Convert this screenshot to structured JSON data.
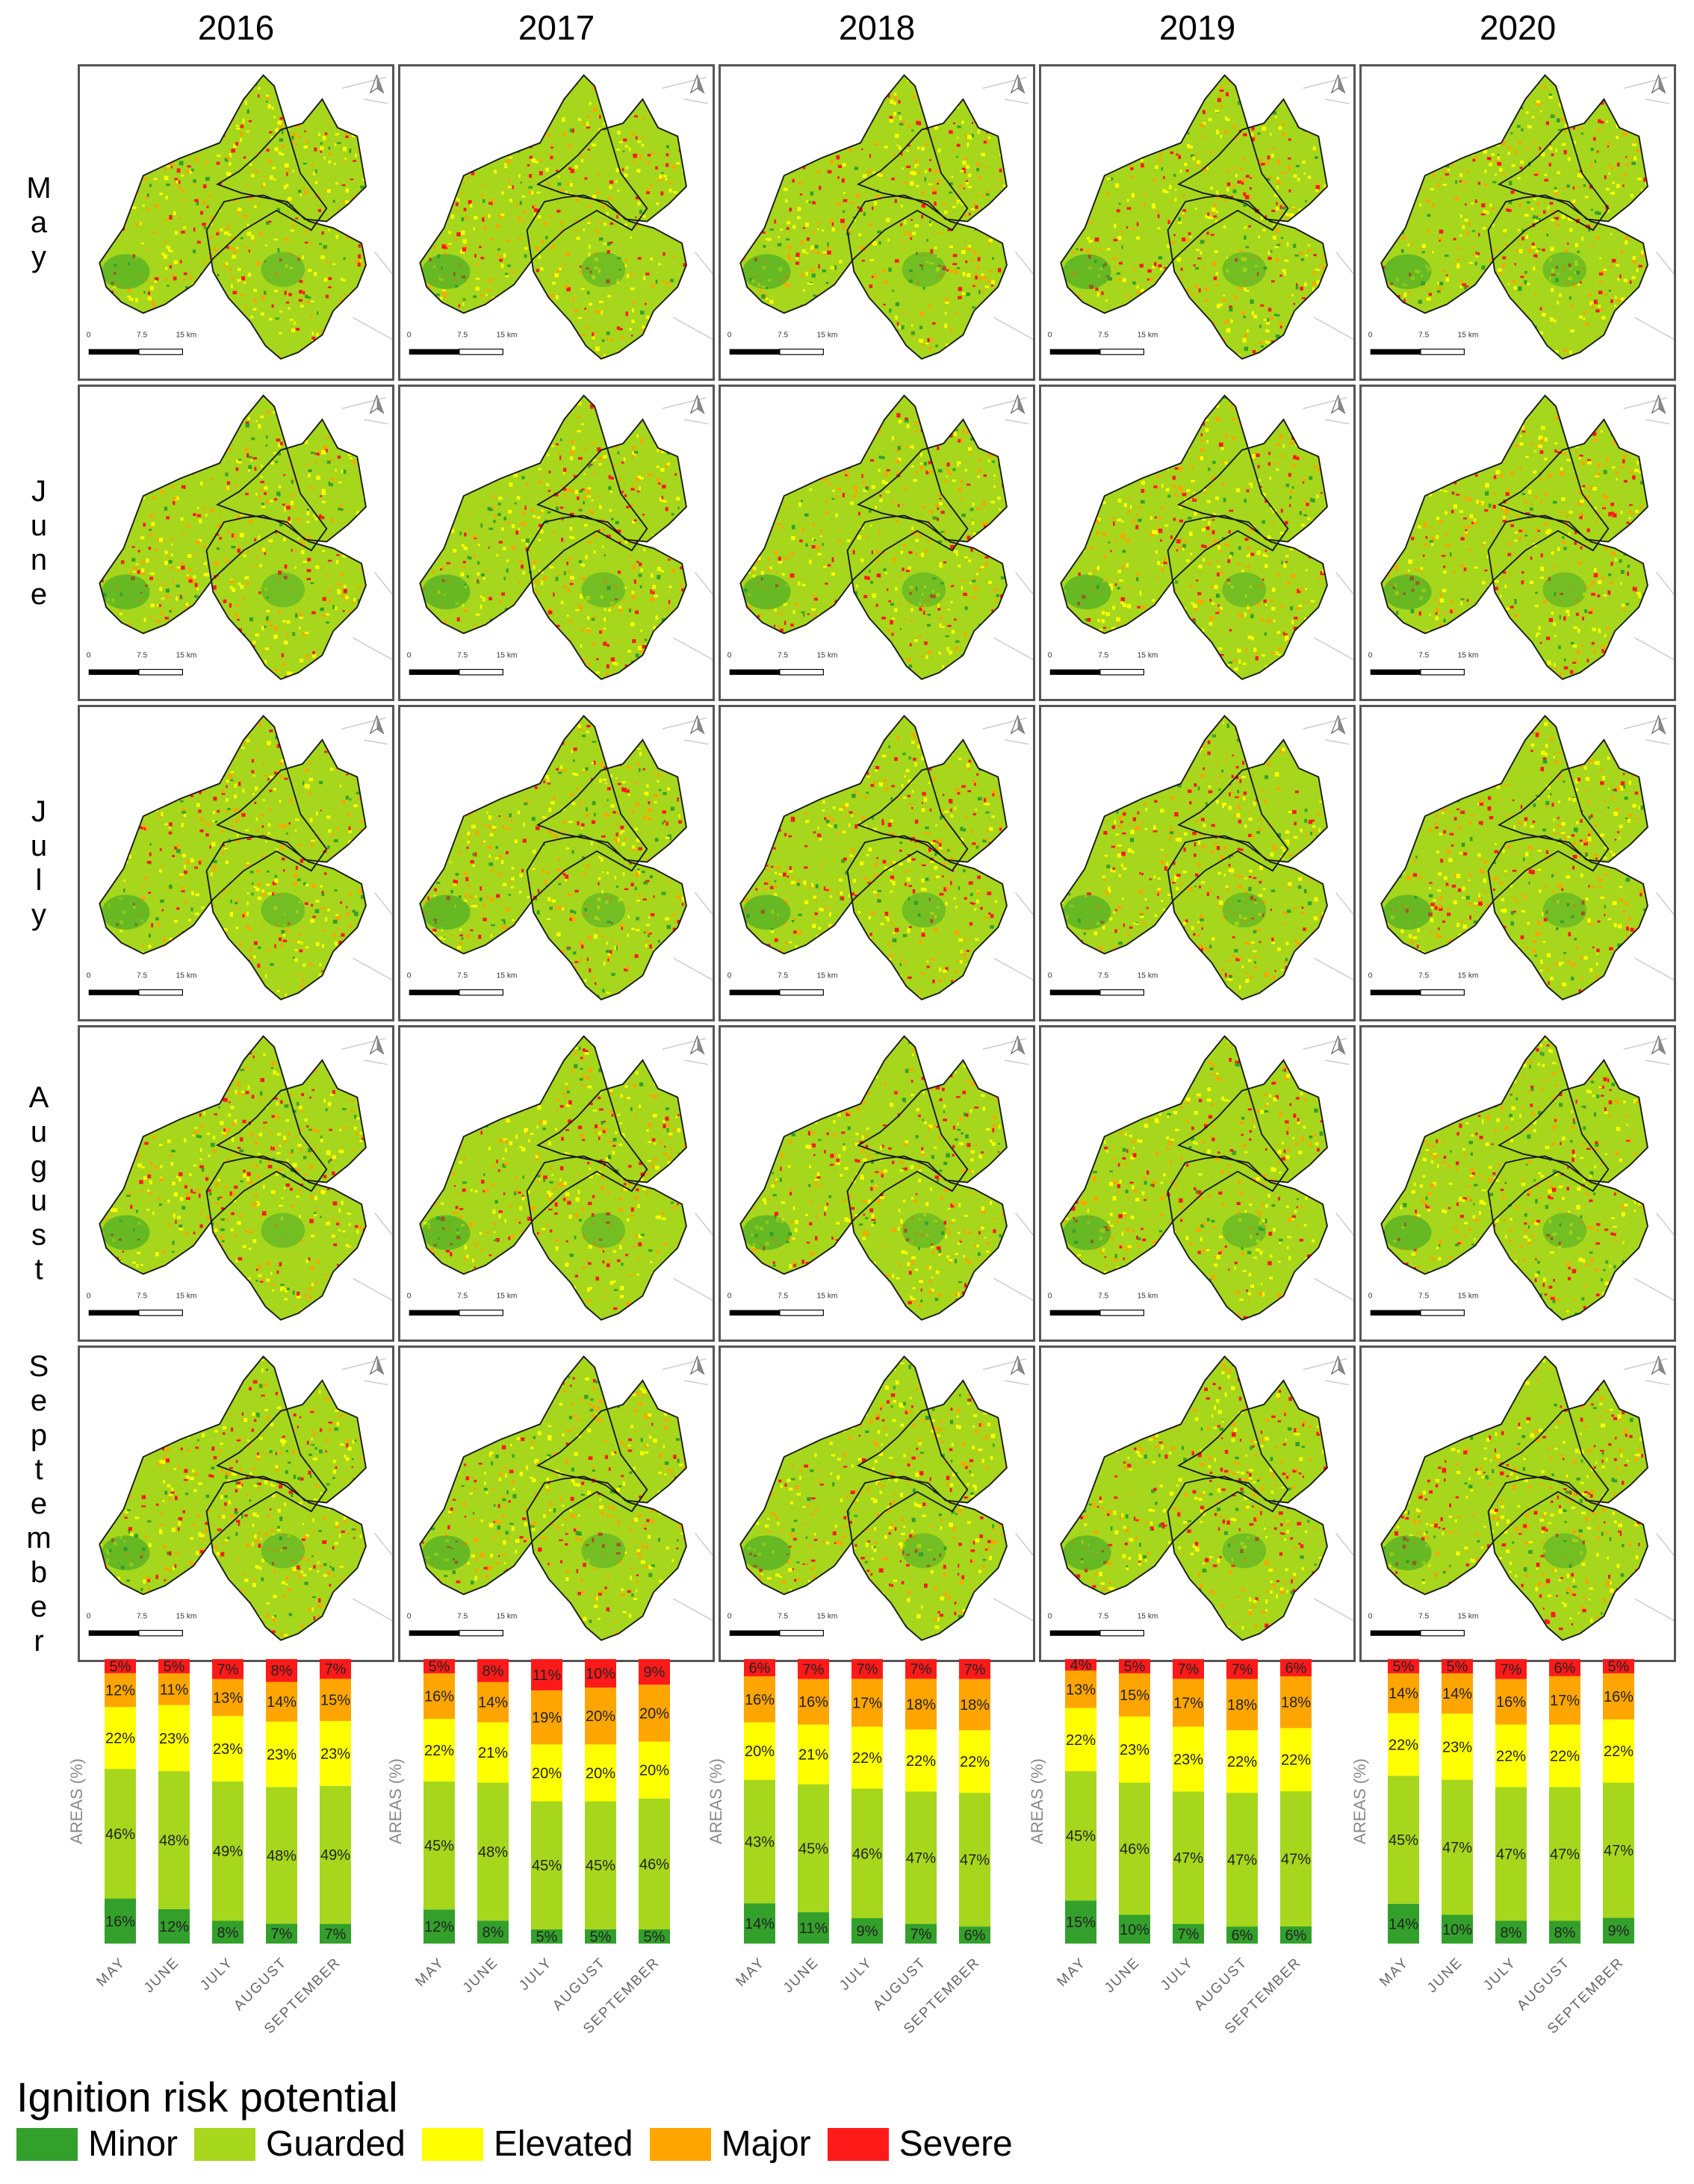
{
  "years": [
    "2016",
    "2017",
    "2018",
    "2019",
    "2020"
  ],
  "months": [
    "May",
    "June",
    "July",
    "August",
    "September"
  ],
  "map_scale": {
    "ticks": [
      "0",
      "7.5",
      "15 km"
    ]
  },
  "legend": {
    "title": "Ignition risk potential",
    "items": [
      {
        "label": "Minor",
        "color": "#33a02c"
      },
      {
        "label": "Guarded",
        "color": "#a6d71c"
      },
      {
        "label": "Elevated",
        "color": "#ffff00"
      },
      {
        "label": "Major",
        "color": "#ffa500"
      },
      {
        "label": "Severe",
        "color": "#ff1a1a"
      }
    ]
  },
  "chart_data": [
    {
      "type": "bar",
      "stacked": true,
      "title": "2016",
      "ylabel": "AREAS (%)",
      "categories": [
        "MAY",
        "JUNE",
        "JULY",
        "AUGUST",
        "SEPTEMBER"
      ],
      "series": [
        {
          "name": "Minor",
          "values": [
            16,
            12,
            8,
            7,
            7
          ]
        },
        {
          "name": "Guarded",
          "values": [
            46,
            48,
            49,
            48,
            49
          ]
        },
        {
          "name": "Elevated",
          "values": [
            22,
            23,
            23,
            23,
            23
          ]
        },
        {
          "name": "Major",
          "values": [
            12,
            11,
            13,
            14,
            15
          ]
        },
        {
          "name": "Severe",
          "values": [
            5,
            5,
            7,
            8,
            7
          ]
        }
      ]
    },
    {
      "type": "bar",
      "stacked": true,
      "title": "2017",
      "ylabel": "AREAS (%)",
      "categories": [
        "MAY",
        "JUNE",
        "JULY",
        "AUGUST",
        "SEPTEMBER"
      ],
      "series": [
        {
          "name": "Minor",
          "values": [
            12,
            8,
            5,
            5,
            5
          ]
        },
        {
          "name": "Guarded",
          "values": [
            45,
            48,
            45,
            45,
            46
          ]
        },
        {
          "name": "Elevated",
          "values": [
            22,
            21,
            20,
            20,
            20
          ]
        },
        {
          "name": "Major",
          "values": [
            16,
            14,
            19,
            20,
            20
          ]
        },
        {
          "name": "Severe",
          "values": [
            5,
            8,
            11,
            10,
            9
          ]
        }
      ]
    },
    {
      "type": "bar",
      "stacked": true,
      "title": "2018",
      "ylabel": "AREAS (%)",
      "categories": [
        "MAY",
        "JUNE",
        "JULY",
        "AUGUST",
        "SEPTEMBER"
      ],
      "series": [
        {
          "name": "Minor",
          "values": [
            14,
            11,
            9,
            7,
            6
          ]
        },
        {
          "name": "Guarded",
          "values": [
            43,
            45,
            46,
            47,
            47
          ]
        },
        {
          "name": "Elevated",
          "values": [
            20,
            21,
            22,
            22,
            22
          ]
        },
        {
          "name": "Major",
          "values": [
            16,
            16,
            17,
            18,
            18
          ]
        },
        {
          "name": "Severe",
          "values": [
            6,
            7,
            7,
            7,
            7
          ]
        }
      ]
    },
    {
      "type": "bar",
      "stacked": true,
      "title": "2019",
      "ylabel": "AREAS (%)",
      "categories": [
        "MAY",
        "JUNE",
        "JULY",
        "AUGUST",
        "SEPTEMBER"
      ],
      "series": [
        {
          "name": "Minor",
          "values": [
            15,
            10,
            7,
            6,
            6
          ]
        },
        {
          "name": "Guarded",
          "values": [
            45,
            46,
            47,
            47,
            47
          ]
        },
        {
          "name": "Elevated",
          "values": [
            22,
            23,
            23,
            22,
            22
          ]
        },
        {
          "name": "Major",
          "values": [
            13,
            15,
            17,
            18,
            18
          ]
        },
        {
          "name": "Severe",
          "values": [
            4,
            5,
            7,
            7,
            6
          ]
        }
      ]
    },
    {
      "type": "bar",
      "stacked": true,
      "title": "2020",
      "ylabel": "AREAS (%)",
      "categories": [
        "MAY",
        "JUNE",
        "JULY",
        "AUGUST",
        "SEPTEMBER"
      ],
      "series": [
        {
          "name": "Minor",
          "values": [
            14,
            10,
            8,
            8,
            9
          ]
        },
        {
          "name": "Guarded",
          "values": [
            45,
            47,
            47,
            47,
            47
          ]
        },
        {
          "name": "Elevated",
          "values": [
            22,
            23,
            22,
            22,
            22
          ]
        },
        {
          "name": "Major",
          "values": [
            14,
            14,
            16,
            17,
            16
          ]
        },
        {
          "name": "Severe",
          "values": [
            5,
            5,
            7,
            6,
            5
          ]
        }
      ]
    }
  ]
}
